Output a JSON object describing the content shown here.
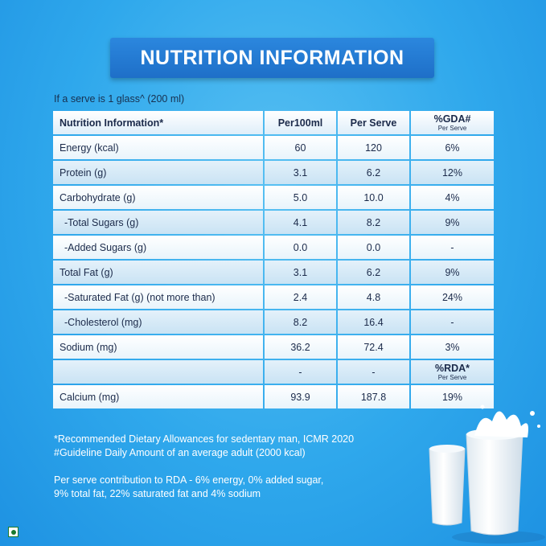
{
  "title": "NUTRITION INFORMATION",
  "serve_note": "If a serve is 1 glass^ (200 ml)",
  "table": {
    "headers": [
      "Nutrition Information*",
      "Per100ml",
      "Per Serve",
      "%GDA#",
      "Per Serve"
    ],
    "rows": [
      {
        "name": "Energy (kcal)",
        "per100": "60",
        "perserve": "120",
        "pct": "6%"
      },
      {
        "name": "Protein (g)",
        "per100": "3.1",
        "perserve": "6.2",
        "pct": "12%"
      },
      {
        "name": "Carbohydrate (g)",
        "per100": "5.0",
        "perserve": "10.0",
        "pct": "4%"
      },
      {
        "name": "-Total Sugars (g)",
        "per100": "4.1",
        "perserve": "8.2",
        "pct": "9%"
      },
      {
        "name": "-Added Sugars (g)",
        "per100": "0.0",
        "perserve": "0.0",
        "pct": "-"
      },
      {
        "name": "Total Fat (g)",
        "per100": "3.1",
        "perserve": "6.2",
        "pct": "9%"
      },
      {
        "name": "-Saturated Fat (g) (not more than)",
        "per100": "2.4",
        "perserve": "4.8",
        "pct": "24%"
      },
      {
        "name": "-Cholesterol (mg)",
        "per100": "8.2",
        "perserve": "16.4",
        "pct": "-"
      },
      {
        "name": "Sodium (mg)",
        "per100": "36.2",
        "perserve": "72.4",
        "pct": "3%"
      },
      {
        "name": "",
        "per100": "-",
        "perserve": "-",
        "pct": "%RDA*",
        "pct_sub": "Per Serve"
      },
      {
        "name": "Calcium (mg)",
        "per100": "93.9",
        "perserve": "187.8",
        "pct": "19%"
      }
    ]
  },
  "footnotes": {
    "line1": "*Recommended Dietary Allowances for sedentary man, ICMR 2020",
    "line2": "#Guideline Daily Amount of an average adult (2000 kcal)",
    "line3": "Per serve contribution to RDA - 6% energy, 0% added sugar,",
    "line4": "9% total fat, 22% saturated fat and 4% sodium"
  }
}
